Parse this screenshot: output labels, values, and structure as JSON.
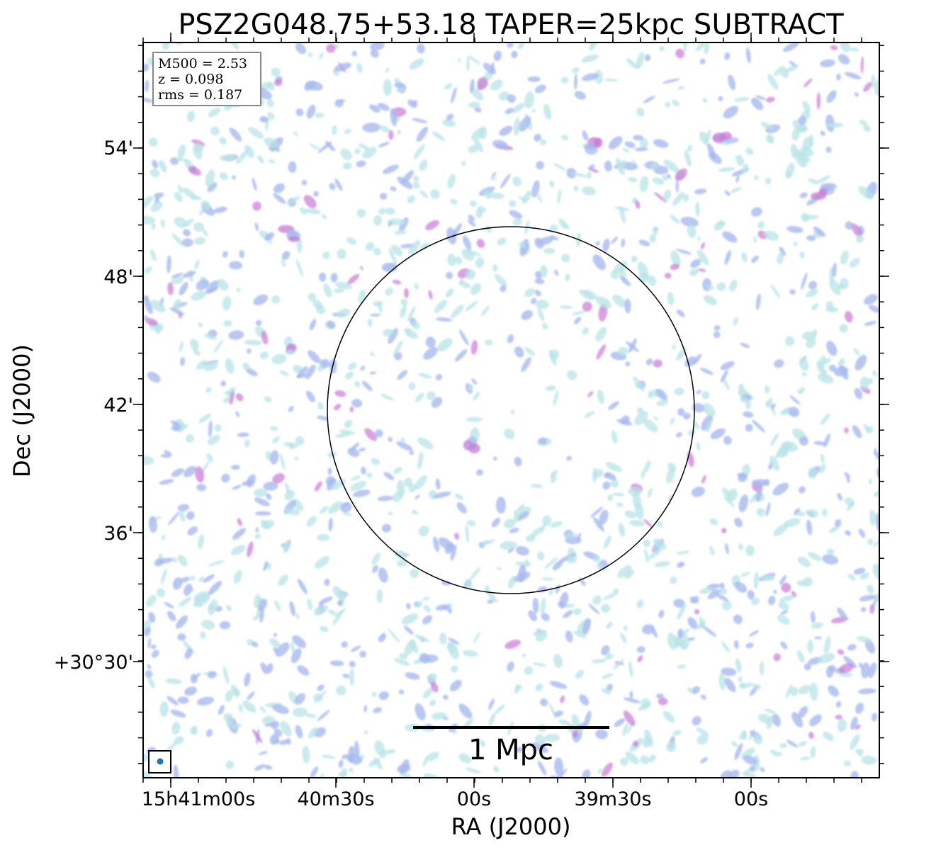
{
  "figure": {
    "title": "PSZ2G048.75+53.18 TAPER=25kpc SUBTRACT",
    "xlabel": "RA (J2000)",
    "ylabel": "Dec (J2000)",
    "x_ticks": [
      "15h41m00s",
      "40m30s",
      "00s",
      "39m30s",
      "00s"
    ],
    "y_ticks": [
      "54'",
      "48'",
      "42'",
      "36'",
      "+30°30'"
    ],
    "info_box": {
      "m500": "M500 = 2.53",
      "z": "z = 0.098",
      "rms": "rms = 0.187"
    },
    "scale_bar_label": "1 Mpc",
    "colors": {
      "emission_faint": "#b9e3e6",
      "emission_mid": "#a8b9ee",
      "emission_bright": "#c77ad2",
      "beam": "#1f77b4"
    }
  }
}
